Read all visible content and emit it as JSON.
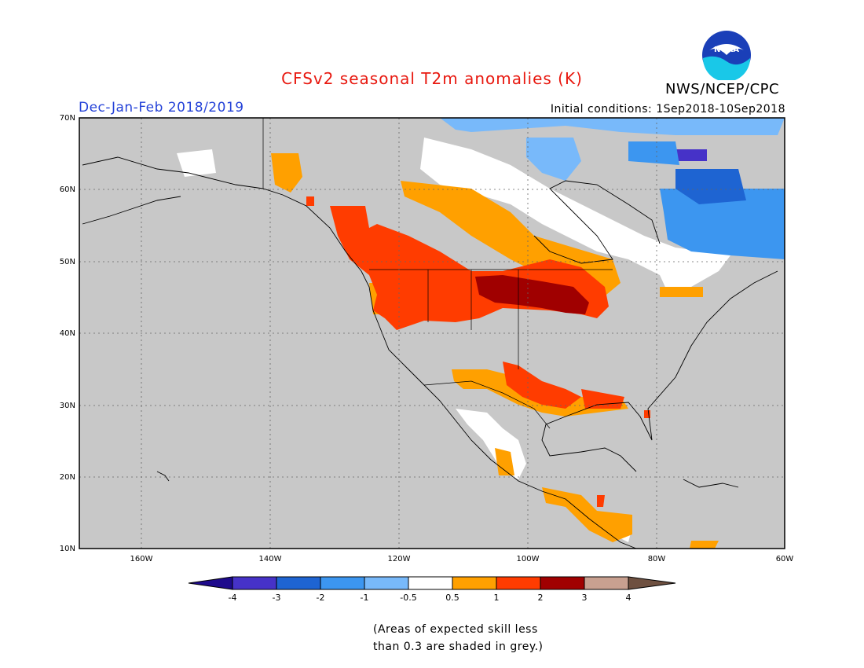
{
  "header": {
    "title": "CFSv2 seasonal T2m anomalies (K)",
    "season": "Dec-Jan-Feb 2018/2019",
    "initial_conditions": "Initial conditions: 1Sep2018-10Sep2018",
    "agency": "NWS/NCEP/CPC",
    "logo_text": "NOAA"
  },
  "map": {
    "lat_labels": [
      "70N",
      "60N",
      "50N",
      "40N",
      "30N",
      "20N",
      "10N"
    ],
    "lon_labels": [
      "160W",
      "140W",
      "120W",
      "100W",
      "80W",
      "60W"
    ],
    "background_color": "#c8c8c8"
  },
  "colorbar": {
    "colors": [
      "#1e0a8c",
      "#4632c8",
      "#1e64d2",
      "#3c96f0",
      "#78b9fa",
      "#ffffff",
      "#ffa000",
      "#ff3c00",
      "#a00000",
      "#c8a090",
      "#6e5040"
    ],
    "tick_labels": [
      "-4",
      "-3",
      "-2",
      "-1",
      "-0.5",
      "0.5",
      "1",
      "2",
      "3",
      "4"
    ]
  },
  "footnote": {
    "line1": "(Areas of expected skill less",
    "line2": "than 0.3 are shaded in grey.)"
  }
}
